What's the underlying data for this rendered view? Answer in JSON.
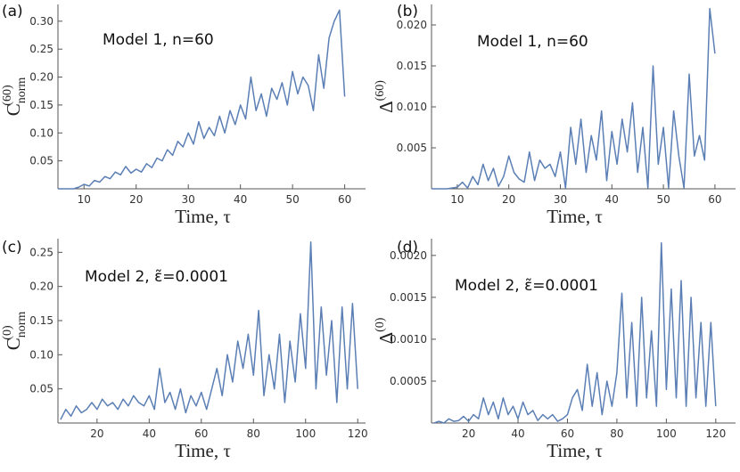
{
  "chart_data": [
    {
      "type": "line",
      "panel": "(a)",
      "annotation": "Model 1, n=60",
      "xlabel": "Time, τ",
      "ylabel": {
        "base": "C",
        "sub": "norm",
        "sup": "(60)"
      },
      "color": "#5b7fb5",
      "x": [
        5,
        6,
        7,
        8,
        9,
        10,
        11,
        12,
        13,
        14,
        15,
        16,
        17,
        18,
        19,
        20,
        21,
        22,
        23,
        24,
        25,
        26,
        27,
        28,
        29,
        30,
        31,
        32,
        33,
        34,
        35,
        36,
        37,
        38,
        39,
        40,
        41,
        42,
        43,
        44,
        45,
        46,
        47,
        48,
        49,
        50,
        51,
        52,
        53,
        54,
        55,
        56,
        57,
        58,
        59,
        60
      ],
      "values": [
        0,
        0,
        0,
        0,
        0.003,
        0.008,
        0.005,
        0.015,
        0.012,
        0.022,
        0.018,
        0.03,
        0.025,
        0.04,
        0.028,
        0.035,
        0.03,
        0.045,
        0.038,
        0.055,
        0.05,
        0.07,
        0.06,
        0.085,
        0.075,
        0.1,
        0.08,
        0.12,
        0.09,
        0.11,
        0.095,
        0.13,
        0.1,
        0.14,
        0.115,
        0.15,
        0.125,
        0.2,
        0.14,
        0.17,
        0.13,
        0.18,
        0.16,
        0.19,
        0.15,
        0.21,
        0.17,
        0.2,
        0.185,
        0.14,
        0.24,
        0.18,
        0.27,
        0.3,
        0.32,
        0.165
      ],
      "xlim": [
        5,
        64
      ],
      "ylim": [
        0,
        0.33
      ],
      "xticks": [
        10,
        20,
        30,
        40,
        50,
        60
      ],
      "yticks": [
        0.05,
        {
          "value": 0.1,
          "label": "0.10"
        },
        0.15,
        {
          "value": 0.2,
          "label": "0.20"
        },
        0.25,
        {
          "value": 0.3,
          "label": "0.30"
        }
      ]
    },
    {
      "type": "line",
      "panel": "(b)",
      "annotation": "Model 1, n=60",
      "xlabel": "Time, τ",
      "ylabel": {
        "base": "Δ",
        "sup": "(60)"
      },
      "color": "#5b7fb5",
      "x": [
        5,
        6,
        7,
        8,
        9,
        10,
        11,
        12,
        13,
        14,
        15,
        16,
        17,
        18,
        19,
        20,
        21,
        22,
        23,
        24,
        25,
        26,
        27,
        28,
        29,
        30,
        31,
        32,
        33,
        34,
        35,
        36,
        37,
        38,
        39,
        40,
        41,
        42,
        43,
        44,
        45,
        46,
        47,
        48,
        49,
        50,
        51,
        52,
        53,
        54,
        55,
        56,
        57,
        58,
        59,
        60
      ],
      "values": [
        0,
        0,
        0,
        0,
        0.0001,
        0.0002,
        0.0008,
        0.0001,
        0.0015,
        0.0005,
        0.003,
        0.001,
        0.0025,
        0.0003,
        0.0015,
        0.004,
        0.002,
        0.0012,
        0.0008,
        0.0045,
        0.001,
        0.0035,
        0.0025,
        0.003,
        0.0015,
        0.0045,
        0.0001,
        0.0075,
        0.003,
        0.0085,
        0.002,
        0.0065,
        0.0035,
        0.0095,
        0.001,
        0.007,
        0.003,
        0.0085,
        0.0045,
        0.0105,
        0.002,
        0.0075,
        0.0001,
        0.015,
        0.003,
        0.0075,
        0.0001,
        0.0095,
        0.004,
        0.0001,
        0.014,
        0.004,
        0.0065,
        0.0035,
        0.022,
        0.0165
      ],
      "xlim": [
        5,
        64
      ],
      "ylim": [
        0,
        0.0225
      ],
      "xticks": [
        10,
        20,
        30,
        40,
        50,
        60
      ],
      "yticks": [
        0.005,
        {
          "value": 0.01,
          "label": "0.010"
        },
        0.015,
        {
          "value": 0.02,
          "label": "0.020"
        }
      ]
    },
    {
      "type": "line",
      "panel": "(c)",
      "annotation": "Model 2, ε̃=0.0001",
      "xlabel": "Time, τ",
      "ylabel": {
        "base": "C",
        "sub": "norm",
        "sup": "(0)"
      },
      "color": "#5b7fb5",
      "x": [
        6,
        8,
        10,
        12,
        14,
        16,
        18,
        20,
        22,
        24,
        26,
        28,
        30,
        32,
        34,
        36,
        38,
        40,
        42,
        44,
        46,
        48,
        50,
        52,
        54,
        56,
        58,
        60,
        62,
        64,
        66,
        68,
        70,
        72,
        74,
        76,
        78,
        80,
        82,
        84,
        86,
        88,
        90,
        92,
        94,
        96,
        98,
        100,
        102,
        104,
        106,
        108,
        110,
        112,
        114,
        116,
        118,
        120
      ],
      "values": [
        0.005,
        0.02,
        0.01,
        0.025,
        0.015,
        0.02,
        0.03,
        0.02,
        0.035,
        0.025,
        0.03,
        0.02,
        0.035,
        0.025,
        0.04,
        0.03,
        0.025,
        0.04,
        0.02,
        0.08,
        0.03,
        0.045,
        0.02,
        0.05,
        0.015,
        0.04,
        0.025,
        0.045,
        0.02,
        0.05,
        0.08,
        0.04,
        0.1,
        0.06,
        0.12,
        0.08,
        0.13,
        0.07,
        0.165,
        0.04,
        0.1,
        0.05,
        0.13,
        0.03,
        0.12,
        0.06,
        0.16,
        0.08,
        0.265,
        0.05,
        0.17,
        0.07,
        0.15,
        0.03,
        0.17,
        0.05,
        0.175,
        0.05
      ],
      "xlim": [
        5,
        123
      ],
      "ylim": [
        0,
        0.27
      ],
      "xticks": [
        20,
        40,
        60,
        80,
        100,
        120
      ],
      "yticks": [
        0.05,
        {
          "value": 0.1,
          "label": "0.10"
        },
        0.15,
        {
          "value": 0.2,
          "label": "0.20"
        },
        0.25
      ]
    },
    {
      "type": "line",
      "panel": "(d)",
      "annotation": "Model 2, ε̃=0.0001",
      "xlabel": "Time, τ",
      "ylabel": {
        "base": "Δ",
        "sup": "(0)"
      },
      "color": "#5b7fb5",
      "x": [
        6,
        8,
        10,
        12,
        14,
        16,
        18,
        20,
        22,
        24,
        26,
        28,
        30,
        32,
        34,
        36,
        38,
        40,
        42,
        44,
        46,
        48,
        50,
        52,
        54,
        56,
        58,
        60,
        62,
        64,
        66,
        68,
        70,
        72,
        74,
        76,
        78,
        80,
        82,
        84,
        86,
        88,
        90,
        92,
        94,
        96,
        98,
        100,
        102,
        104,
        106,
        108,
        110,
        112,
        114,
        116,
        118,
        120
      ],
      "values": [
        0,
        2e-05,
        0,
        5e-05,
        2e-05,
        3e-05,
        8e-05,
        2e-05,
        0.0001,
        5e-05,
        0.0003,
        0.0001,
        0.00025,
        5e-05,
        0.0003,
        0.0001,
        0.0002,
        5e-05,
        0.00025,
        0.0001,
        0.00015,
        3e-05,
        0.0001,
        5e-05,
        0.0001,
        2e-05,
        5e-05,
        0.0001,
        0.0003,
        0.0004,
        0.00015,
        0.0007,
        0.0002,
        0.0006,
        0.0001,
        0.0005,
        0.0002,
        0.0006,
        0.00155,
        0.0003,
        0.0012,
        0.0002,
        0.0015,
        0.0003,
        0.0011,
        0.0002,
        0.00215,
        0.0004,
        0.0016,
        0.0003,
        0.0017,
        0.0002,
        0.0015,
        0.0003,
        0.0012,
        0.0002,
        0.0012,
        0.0002
      ],
      "xlim": [
        5,
        128
      ],
      "ylim": [
        0,
        0.0022
      ],
      "xticks": [
        20,
        40,
        60,
        80,
        100,
        120
      ],
      "yticks": [
        0.0005,
        {
          "value": 0.001,
          "label": "0.0010"
        },
        0.0015,
        {
          "value": 0.002,
          "label": "0.0020"
        }
      ]
    }
  ]
}
